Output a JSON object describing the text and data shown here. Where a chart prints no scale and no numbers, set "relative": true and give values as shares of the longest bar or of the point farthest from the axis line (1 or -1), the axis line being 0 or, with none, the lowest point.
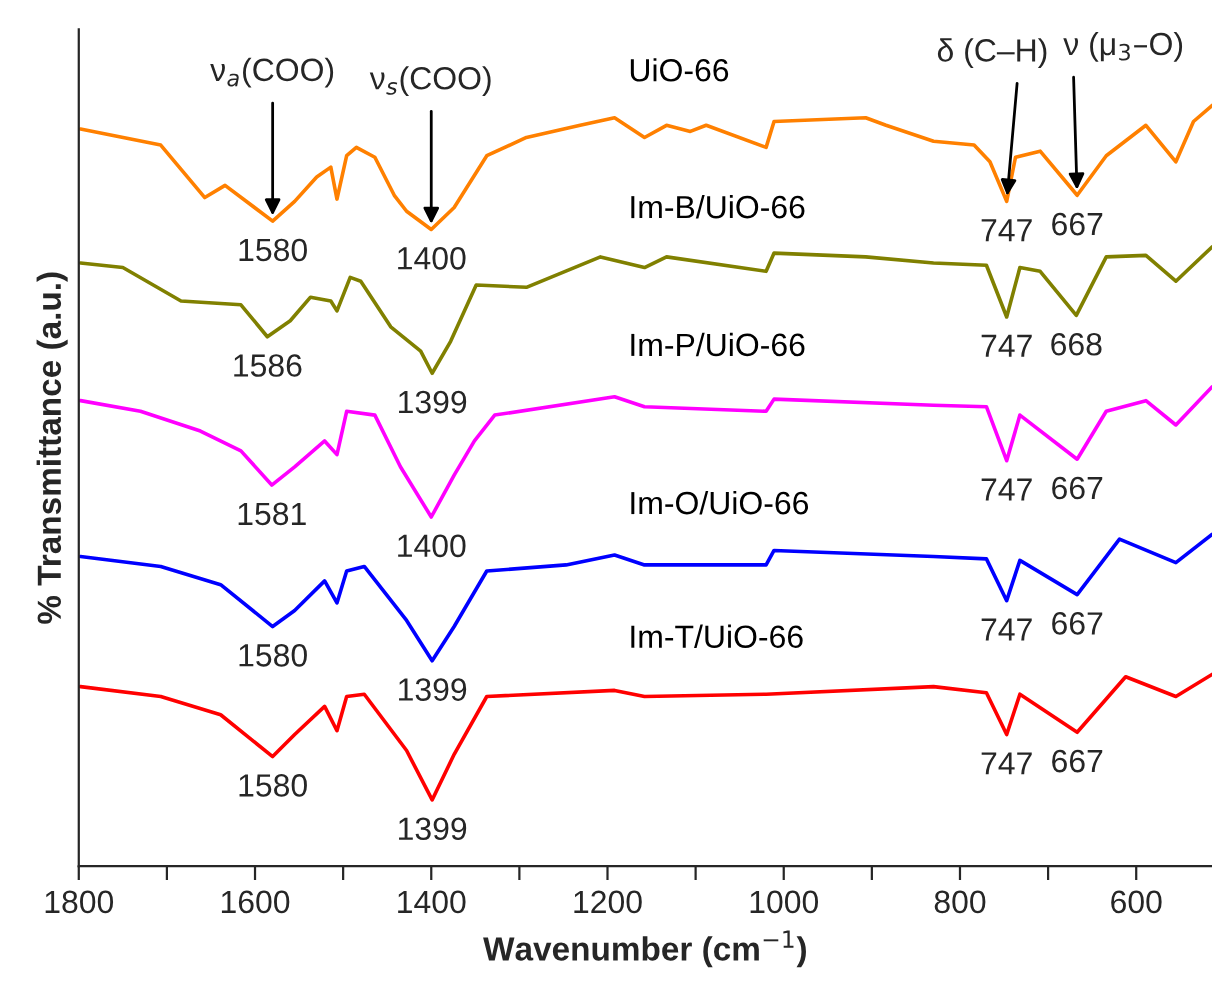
{
  "chart_data": {
    "type": "line",
    "relative": true,
    "xlabel": "Wavenumber (cm$^{−1}$)",
    "ylabel": "% Transmittance (a.u.)",
    "xlim": [
      1800,
      514
    ],
    "xticks": [
      1800,
      {
        "value": 1700,
        "label": null
      },
      1600,
      {
        "value": 1500,
        "label": null
      },
      1400,
      {
        "value": 1300,
        "label": null
      },
      1200,
      {
        "value": 1100,
        "label": null
      },
      1000,
      {
        "value": 900,
        "label": null
      },
      800,
      {
        "value": 700,
        "label": null
      },
      600
    ],
    "tick_labels": "x",
    "grid": false,
    "legend": false,
    "series": [
      {
        "name": "UiO-66",
        "color": "#ff8000",
        "x": [
          1798,
          1707,
          1657,
          1634,
          1580,
          1555,
          1530,
          1514,
          1507,
          1496,
          1485,
          1464,
          1442,
          1428,
          1400,
          1374,
          1337,
          1292,
          1231,
          1192,
          1158,
          1133,
          1106,
          1088,
          1020,
          1011,
          907,
          884,
          830,
          784,
          766,
          747,
          737,
          709,
          667,
          634,
          589,
          555,
          535,
          514
        ],
        "values": [
          0.969,
          0.948,
          0.879,
          0.895,
          0.848,
          0.874,
          0.906,
          0.919,
          0.877,
          0.934,
          0.945,
          0.932,
          0.882,
          0.861,
          0.837,
          0.866,
          0.934,
          0.958,
          0.974,
          0.984,
          0.958,
          0.974,
          0.966,
          0.974,
          0.945,
          0.979,
          0.984,
          0.974,
          0.953,
          0.948,
          0.926,
          0.874,
          0.932,
          0.94,
          0.882,
          0.934,
          0.974,
          0.926,
          0.979,
          1.0
        ]
      },
      {
        "name": "Im-B/UiO-66",
        "color": "#808000",
        "x": [
          1798,
          1750,
          1684,
          1616,
          1586,
          1560,
          1537,
          1514,
          1507,
          1492,
          1480,
          1446,
          1412,
          1399,
          1378,
          1349,
          1292,
          1208,
          1158,
          1133,
          1020,
          1011,
          907,
          830,
          770,
          747,
          732,
          709,
          668,
          634,
          589,
          555,
          514
        ],
        "values": [
          0.793,
          0.787,
          0.743,
          0.738,
          0.696,
          0.717,
          0.748,
          0.743,
          0.73,
          0.774,
          0.769,
          0.709,
          0.677,
          0.648,
          0.69,
          0.764,
          0.761,
          0.801,
          0.787,
          0.801,
          0.782,
          0.806,
          0.801,
          0.793,
          0.79,
          0.722,
          0.787,
          0.782,
          0.724,
          0.801,
          0.803,
          0.769,
          0.814
        ]
      },
      {
        "name": "Im-P/UiO-66",
        "color": "#ff00ff",
        "x": [
          1798,
          1730,
          1662,
          1616,
          1581,
          1555,
          1521,
          1507,
          1496,
          1464,
          1435,
          1400,
          1374,
          1351,
          1328,
          1192,
          1158,
          1020,
          1011,
          830,
          770,
          747,
          732,
          667,
          634,
          589,
          555,
          514
        ],
        "values": [
          0.612,
          0.598,
          0.572,
          0.546,
          0.501,
          0.525,
          0.559,
          0.541,
          0.598,
          0.593,
          0.525,
          0.459,
          0.514,
          0.559,
          0.593,
          0.617,
          0.604,
          0.598,
          0.614,
          0.606,
          0.604,
          0.533,
          0.593,
          0.535,
          0.598,
          0.612,
          0.58,
          0.63
        ]
      },
      {
        "name": "Im-O/UiO-66",
        "color": "#0000ff",
        "x": [
          1798,
          1707,
          1639,
          1580,
          1555,
          1521,
          1507,
          1496,
          1476,
          1428,
          1399,
          1374,
          1337,
          1247,
          1192,
          1158,
          1020,
          1011,
          830,
          770,
          747,
          732,
          667,
          619,
          555,
          514
        ],
        "values": [
          0.407,
          0.394,
          0.37,
          0.315,
          0.336,
          0.375,
          0.346,
          0.388,
          0.394,
          0.323,
          0.27,
          0.315,
          0.388,
          0.396,
          0.409,
          0.396,
          0.396,
          0.415,
          0.407,
          0.404,
          0.349,
          0.402,
          0.357,
          0.43,
          0.399,
          0.436
        ]
      },
      {
        "name": "Im-T/UiO-66",
        "color": "#ff0000",
        "x": [
          1798,
          1707,
          1639,
          1580,
          1555,
          1521,
          1507,
          1496,
          1476,
          1428,
          1399,
          1374,
          1337,
          1192,
          1158,
          1020,
          830,
          770,
          747,
          732,
          667,
          612,
          555,
          514
        ],
        "values": [
          0.236,
          0.223,
          0.199,
          0.144,
          0.173,
          0.21,
          0.178,
          0.223,
          0.226,
          0.152,
          0.087,
          0.147,
          0.223,
          0.231,
          0.223,
          0.226,
          0.236,
          0.228,
          0.173,
          0.226,
          0.176,
          0.249,
          0.223,
          0.252
        ]
      }
    ],
    "annotations": [
      {
        "text": "ν$_{a}$(COO)",
        "x": 1580,
        "y": 0.848
      },
      {
        "text": "ν$_{s}$(COO)",
        "x": 1400,
        "y": 0.837
      },
      {
        "text": "δ (C–H)",
        "x": 747,
        "y": 0.874
      },
      {
        "text": "ν (μ$_{3}$–O)",
        "x": 667,
        "y": 0.882
      },
      {
        "text": "1580",
        "x": 1580,
        "y": 0.848
      },
      {
        "text": "1400",
        "x": 1400,
        "y": 0.837
      },
      {
        "text": "747",
        "x": 747,
        "y": 0.874
      },
      {
        "text": "667",
        "x": 667,
        "y": 0.882
      },
      {
        "text": "1586",
        "x": 1586,
        "y": 0.696
      },
      {
        "text": "1399",
        "x": 1399,
        "y": 0.648
      },
      {
        "text": "747",
        "x": 747,
        "y": 0.722
      },
      {
        "text": "668",
        "x": 668,
        "y": 0.724
      },
      {
        "text": "1581",
        "x": 1581,
        "y": 0.501
      },
      {
        "text": "1400",
        "x": 1400,
        "y": 0.459
      },
      {
        "text": "747",
        "x": 747,
        "y": 0.533
      },
      {
        "text": "667",
        "x": 667,
        "y": 0.535
      },
      {
        "text": "1580",
        "x": 1580,
        "y": 0.315
      },
      {
        "text": "1399",
        "x": 1399,
        "y": 0.27
      },
      {
        "text": "747",
        "x": 747,
        "y": 0.349
      },
      {
        "text": "667",
        "x": 667,
        "y": 0.357
      },
      {
        "text": "1580",
        "x": 1580,
        "y": 0.144
      },
      {
        "text": "1399",
        "x": 1399,
        "y": 0.087
      },
      {
        "text": "747",
        "x": 747,
        "y": 0.173
      },
      {
        "text": "667",
        "x": 667,
        "y": 0.176
      }
    ]
  }
}
